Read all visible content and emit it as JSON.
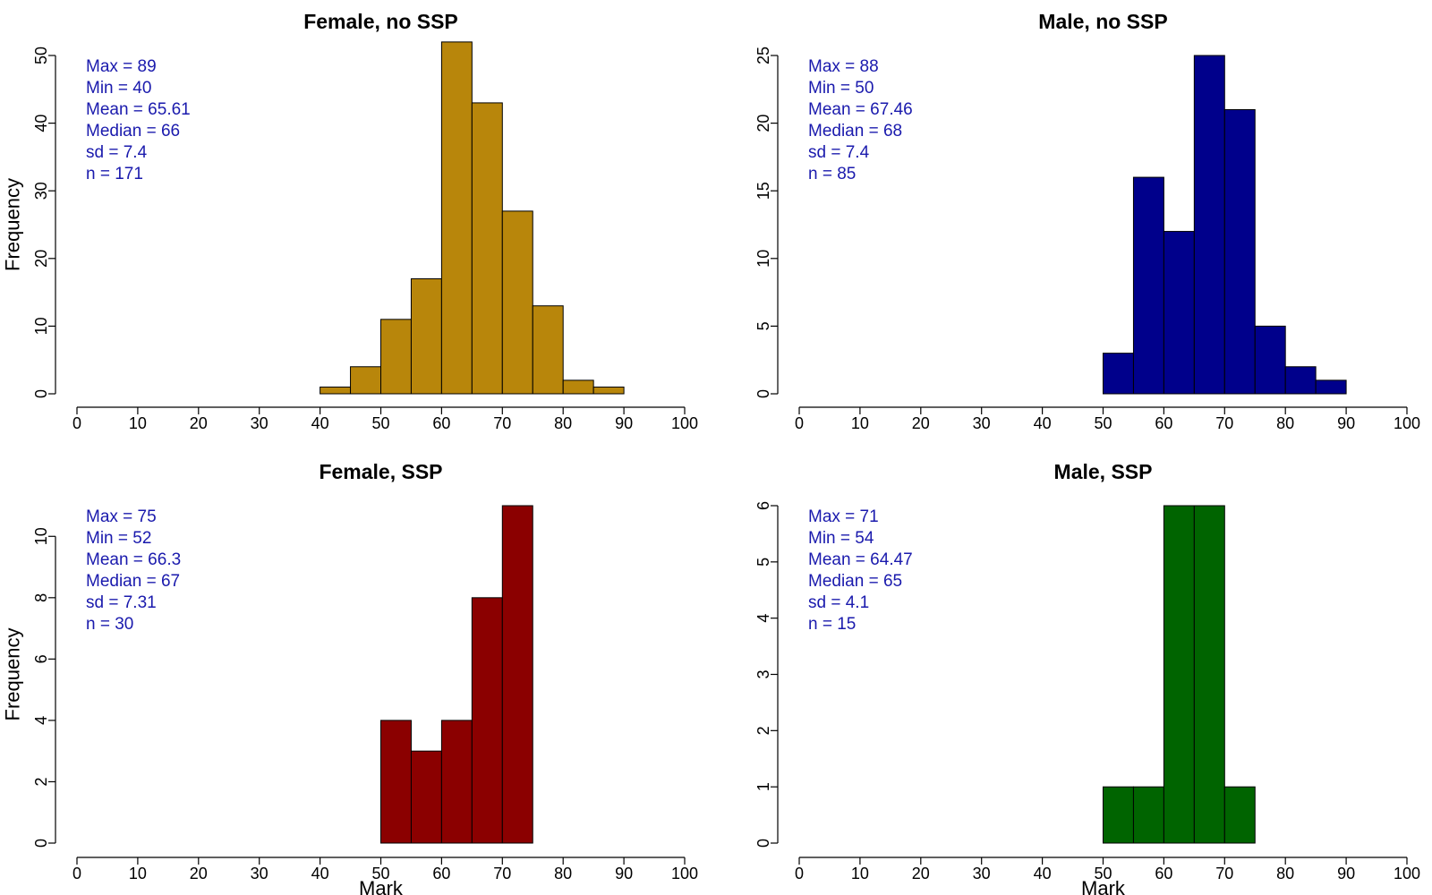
{
  "chart_data": [
    {
      "type": "bar",
      "title": "Female, no SSP",
      "xlabel": "",
      "ylabel": "Frequency",
      "xlim": [
        0,
        100
      ],
      "xticks": [
        0,
        10,
        20,
        30,
        40,
        50,
        60,
        70,
        80,
        90,
        100
      ],
      "ylim": [
        0,
        50
      ],
      "yticks": [
        0,
        10,
        20,
        30,
        40,
        50
      ],
      "bin_width": 5,
      "bins": [
        40,
        45,
        50,
        55,
        60,
        65,
        70,
        75,
        80,
        85
      ],
      "values": [
        1,
        4,
        11,
        17,
        52,
        43,
        27,
        13,
        2,
        1
      ],
      "color": "#b8860b",
      "stats": [
        {
          "label": "Max =",
          "value": "89"
        },
        {
          "label": "Min =",
          "value": "40"
        },
        {
          "label": "Mean =",
          "value": "65.61"
        },
        {
          "label": "Median =",
          "value": "66"
        },
        {
          "label": "sd =",
          "value": "7.4"
        },
        {
          "label": "n =",
          "value": "171"
        }
      ]
    },
    {
      "type": "bar",
      "title": "Male, no SSP",
      "xlabel": "",
      "ylabel": "",
      "xlim": [
        0,
        100
      ],
      "xticks": [
        0,
        10,
        20,
        30,
        40,
        50,
        60,
        70,
        80,
        90,
        100
      ],
      "ylim": [
        0,
        25
      ],
      "yticks": [
        0,
        5,
        10,
        15,
        20,
        25
      ],
      "bin_width": 5,
      "bins": [
        50,
        55,
        60,
        65,
        70,
        75,
        80,
        85
      ],
      "values": [
        3,
        16,
        12,
        25,
        21,
        5,
        2,
        1
      ],
      "color": "#00008b",
      "stats": [
        {
          "label": "Max =",
          "value": "88"
        },
        {
          "label": "Min =",
          "value": "50"
        },
        {
          "label": "Mean =",
          "value": "67.46"
        },
        {
          "label": "Median =",
          "value": "68"
        },
        {
          "label": "sd =",
          "value": "7.4"
        },
        {
          "label": "n =",
          "value": "85"
        }
      ]
    },
    {
      "type": "bar",
      "title": "Female, SSP",
      "xlabel": "Mark",
      "ylabel": "Frequency",
      "xlim": [
        0,
        100
      ],
      "xticks": [
        0,
        10,
        20,
        30,
        40,
        50,
        60,
        70,
        80,
        90,
        100
      ],
      "ylim": [
        0,
        11
      ],
      "yticks": [
        0,
        2,
        4,
        6,
        8,
        10
      ],
      "bin_width": 5,
      "bins": [
        50,
        55,
        60,
        65,
        70
      ],
      "values": [
        4,
        3,
        4,
        8,
        11
      ],
      "color": "#8b0000",
      "stats": [
        {
          "label": "Max =",
          "value": "75"
        },
        {
          "label": "Min =",
          "value": "52"
        },
        {
          "label": "Mean =",
          "value": "66.3"
        },
        {
          "label": "Median =",
          "value": "67"
        },
        {
          "label": "sd =",
          "value": "7.31"
        },
        {
          "label": "n =",
          "value": "30"
        }
      ]
    },
    {
      "type": "bar",
      "title": "Male, SSP",
      "xlabel": "Mark",
      "ylabel": "",
      "xlim": [
        0,
        100
      ],
      "xticks": [
        0,
        10,
        20,
        30,
        40,
        50,
        60,
        70,
        80,
        90,
        100
      ],
      "ylim": [
        0,
        6
      ],
      "yticks": [
        0,
        1,
        2,
        3,
        4,
        5,
        6
      ],
      "bin_width": 5,
      "bins": [
        50,
        55,
        60,
        65,
        70
      ],
      "values": [
        1,
        1,
        6,
        6,
        1
      ],
      "color": "#006400",
      "stats": [
        {
          "label": "Max =",
          "value": "71"
        },
        {
          "label": "Min =",
          "value": "54"
        },
        {
          "label": "Mean =",
          "value": "64.47"
        },
        {
          "label": "Median =",
          "value": "65"
        },
        {
          "label": "sd =",
          "value": "4.1"
        },
        {
          "label": "n =",
          "value": "15"
        }
      ]
    }
  ]
}
